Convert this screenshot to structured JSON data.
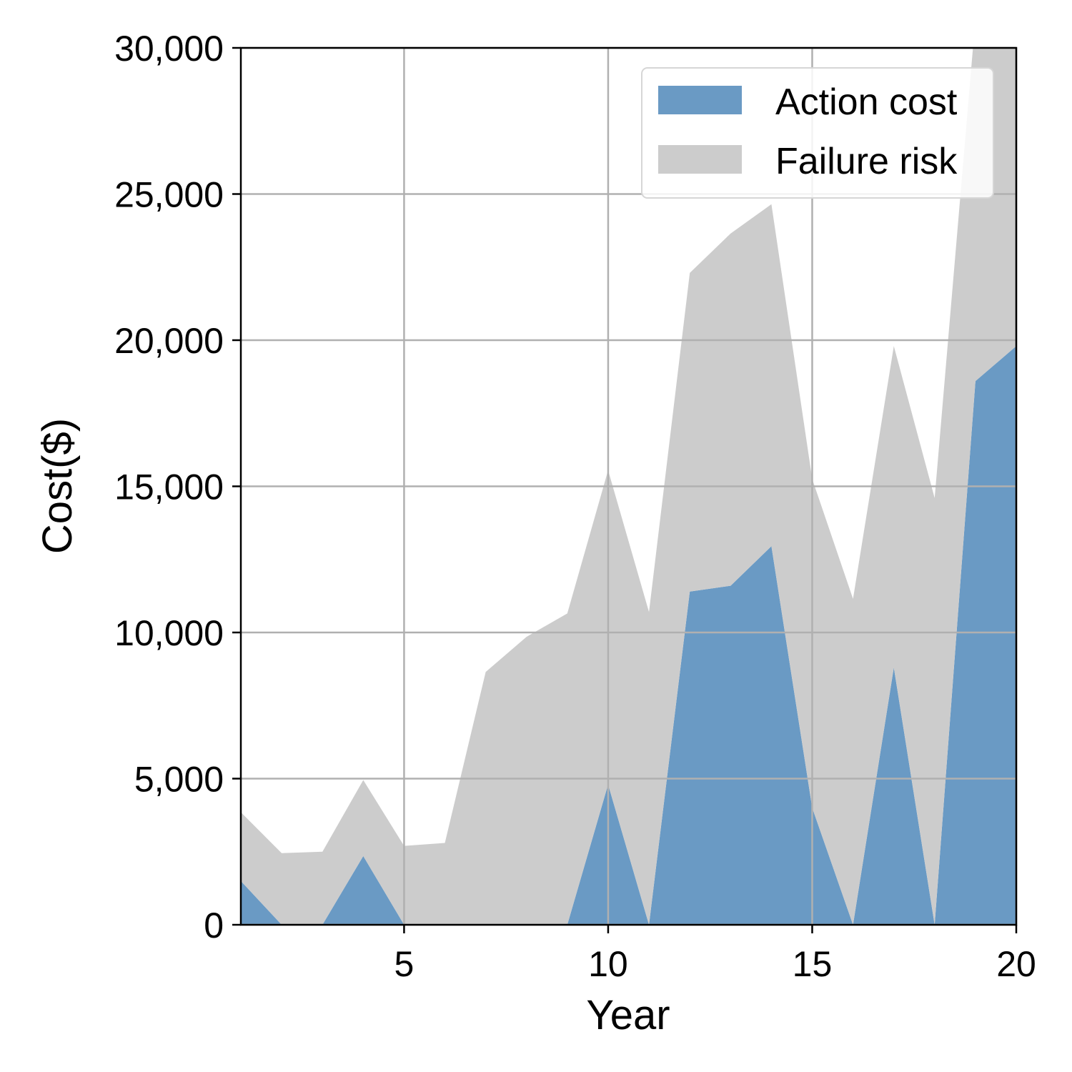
{
  "chart_data": {
    "type": "area",
    "stacked": true,
    "x": [
      1,
      2,
      3,
      4,
      5,
      6,
      7,
      8,
      9,
      10,
      11,
      12,
      13,
      14,
      15,
      16,
      17,
      18,
      19,
      20
    ],
    "series": [
      {
        "name": "Action cost",
        "color": "#6a9ac4",
        "values": [
          1500,
          0,
          0,
          2350,
          0,
          0,
          0,
          0,
          0,
          4800,
          0,
          11400,
          11600,
          12950,
          4000,
          0,
          8800,
          0,
          18600,
          19800
        ]
      },
      {
        "name": "Failure risk",
        "color": "#cccccc",
        "values": [
          2350,
          2450,
          2500,
          2600,
          2700,
          2800,
          8650,
          9850,
          10650,
          10750,
          10700,
          10900,
          12050,
          11700,
          11250,
          11150,
          11000,
          14600,
          12400,
          11000
        ]
      }
    ],
    "xlabel": "Year",
    "ylabel": "Cost($)",
    "xlim": [
      1,
      20
    ],
    "ylim": [
      0,
      30000
    ],
    "xticks": [
      5,
      10,
      15,
      20
    ],
    "xtick_labels": [
      "5",
      "10",
      "15",
      "20"
    ],
    "yticks": [
      0,
      5000,
      10000,
      15000,
      20000,
      25000,
      30000
    ],
    "ytick_labels": [
      "0",
      "5,000",
      "10,000",
      "15,000",
      "20,000",
      "25,000",
      "30,000"
    ],
    "grid": true,
    "legend_position": "top-right"
  }
}
